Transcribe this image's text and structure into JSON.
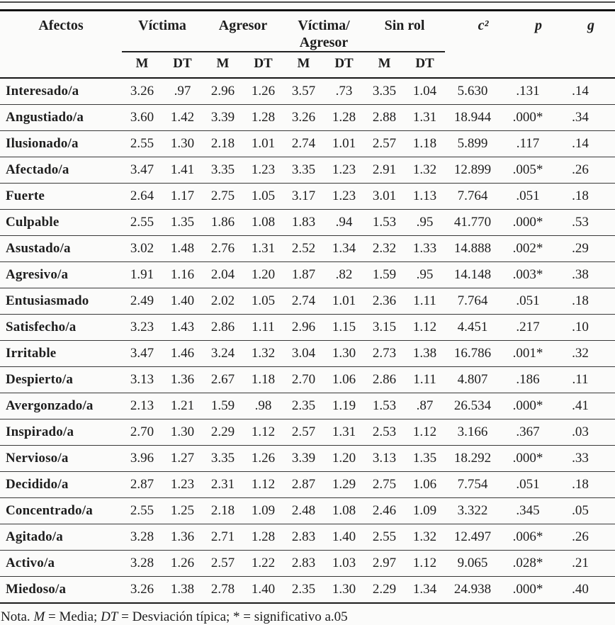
{
  "colors": {
    "ink": "#1e1e1e",
    "background": "#fbfbfa",
    "rule": "#1b1b1b"
  },
  "table": {
    "corner_header": "Afectos",
    "group_headers": [
      "Víctima",
      "Agresor",
      "Víctima/ Agresor",
      "Sin rol"
    ],
    "sub_headers": [
      "M",
      "DT",
      "M",
      "DT",
      "M",
      "DT",
      "M",
      "DT"
    ],
    "stat_headers": [
      "c²",
      "p",
      "g"
    ],
    "rows": [
      {
        "label": "Interesado/a",
        "values": [
          "3.26",
          ".97",
          "2.96",
          "1.26",
          "3.57",
          ".73",
          "3.35",
          "1.04",
          "5.630",
          ".131",
          ".14"
        ]
      },
      {
        "label": "Angustiado/a",
        "values": [
          "3.60",
          "1.42",
          "3.39",
          "1.28",
          "3.26",
          "1.28",
          "2.88",
          "1.31",
          "18.944",
          ".000*",
          ".34"
        ]
      },
      {
        "label": "Ilusionado/a",
        "values": [
          "2.55",
          "1.30",
          "2.18",
          "1.01",
          "2.74",
          "1.01",
          "2.57",
          "1.18",
          "5.899",
          ".117",
          ".14"
        ]
      },
      {
        "label": "Afectado/a",
        "values": [
          "3.47",
          "1.41",
          "3.35",
          "1.23",
          "3.35",
          "1.23",
          "2.91",
          "1.32",
          "12.899",
          ".005*",
          ".26"
        ]
      },
      {
        "label": "Fuerte",
        "values": [
          "2.64",
          "1.17",
          "2.75",
          "1.05",
          "3.17",
          "1.23",
          "3.01",
          "1.13",
          "7.764",
          ".051",
          ".18"
        ]
      },
      {
        "label": "Culpable",
        "values": [
          "2.55",
          "1.35",
          "1.86",
          "1.08",
          "1.83",
          ".94",
          "1.53",
          ".95",
          "41.770",
          ".000*",
          ".53"
        ]
      },
      {
        "label": "Asustado/a",
        "values": [
          "3.02",
          "1.48",
          "2.76",
          "1.31",
          "2.52",
          "1.34",
          "2.32",
          "1.33",
          "14.888",
          ".002*",
          ".29"
        ]
      },
      {
        "label": "Agresivo/a",
        "values": [
          "1.91",
          "1.16",
          "2.04",
          "1.20",
          "1.87",
          ".82",
          "1.59",
          ".95",
          "14.148",
          ".003*",
          ".38"
        ]
      },
      {
        "label": "Entusiasmado",
        "values": [
          "2.49",
          "1.40",
          "2.02",
          "1.05",
          "2.74",
          "1.01",
          "2.36",
          "1.11",
          "7.764",
          ".051",
          ".18"
        ]
      },
      {
        "label": "Satisfecho/a",
        "values": [
          "3.23",
          "1.43",
          "2.86",
          "1.11",
          "2.96",
          "1.15",
          "3.15",
          "1.12",
          "4.451",
          ".217",
          ".10"
        ]
      },
      {
        "label": "Irritable",
        "values": [
          "3.47",
          "1.46",
          "3.24",
          "1.32",
          "3.04",
          "1.30",
          "2.73",
          "1.38",
          "16.786",
          ".001*",
          ".32"
        ]
      },
      {
        "label": "Despierto/a",
        "values": [
          "3.13",
          "1.36",
          "2.67",
          "1.18",
          "2.70",
          "1.06",
          "2.86",
          "1.11",
          "4.807",
          ".186",
          ".11"
        ]
      },
      {
        "label": "Avergonzado/a",
        "values": [
          "2.13",
          "1.21",
          "1.59",
          ".98",
          "2.35",
          "1.19",
          "1.53",
          ".87",
          "26.534",
          ".000*",
          ".41"
        ]
      },
      {
        "label": "Inspirado/a",
        "values": [
          "2.70",
          "1.30",
          "2.29",
          "1.12",
          "2.57",
          "1.31",
          "2.53",
          "1.12",
          "3.166",
          ".367",
          ".03"
        ]
      },
      {
        "label": "Nervioso/a",
        "values": [
          "3.96",
          "1.27",
          "3.35",
          "1.26",
          "3.39",
          "1.20",
          "3.13",
          "1.35",
          "18.292",
          ".000*",
          ".33"
        ]
      },
      {
        "label": "Decidido/a",
        "values": [
          "2.87",
          "1.23",
          "2.31",
          "1.12",
          "2.87",
          "1.29",
          "2.75",
          "1.06",
          "7.754",
          ".051",
          ".18"
        ]
      },
      {
        "label": "Concentrado/a",
        "values": [
          "2.55",
          "1.25",
          "2.18",
          "1.09",
          "2.48",
          "1.08",
          "2.46",
          "1.09",
          "3.322",
          ".345",
          ".05"
        ]
      },
      {
        "label": "Agitado/a",
        "values": [
          "3.28",
          "1.36",
          "2.71",
          "1.28",
          "2.83",
          "1.40",
          "2.55",
          "1.32",
          "12.497",
          ".006*",
          ".26"
        ]
      },
      {
        "label": "Activo/a",
        "values": [
          "3.28",
          "1.26",
          "2.57",
          "1.22",
          "2.83",
          "1.03",
          "2.97",
          "1.12",
          "9.065",
          ".028*",
          ".21"
        ]
      },
      {
        "label": "Miedoso/a",
        "values": [
          "3.26",
          "1.38",
          "2.78",
          "1.40",
          "2.35",
          "1.30",
          "2.29",
          "1.34",
          "24.938",
          ".000*",
          ".40"
        ]
      }
    ],
    "note": {
      "prefix": "Nota. ",
      "term_m": "M",
      "eq_m": " = Media; ",
      "term_dt": "DT",
      "eq_dt": " = Desviación típica; * = significativo a.05"
    }
  }
}
